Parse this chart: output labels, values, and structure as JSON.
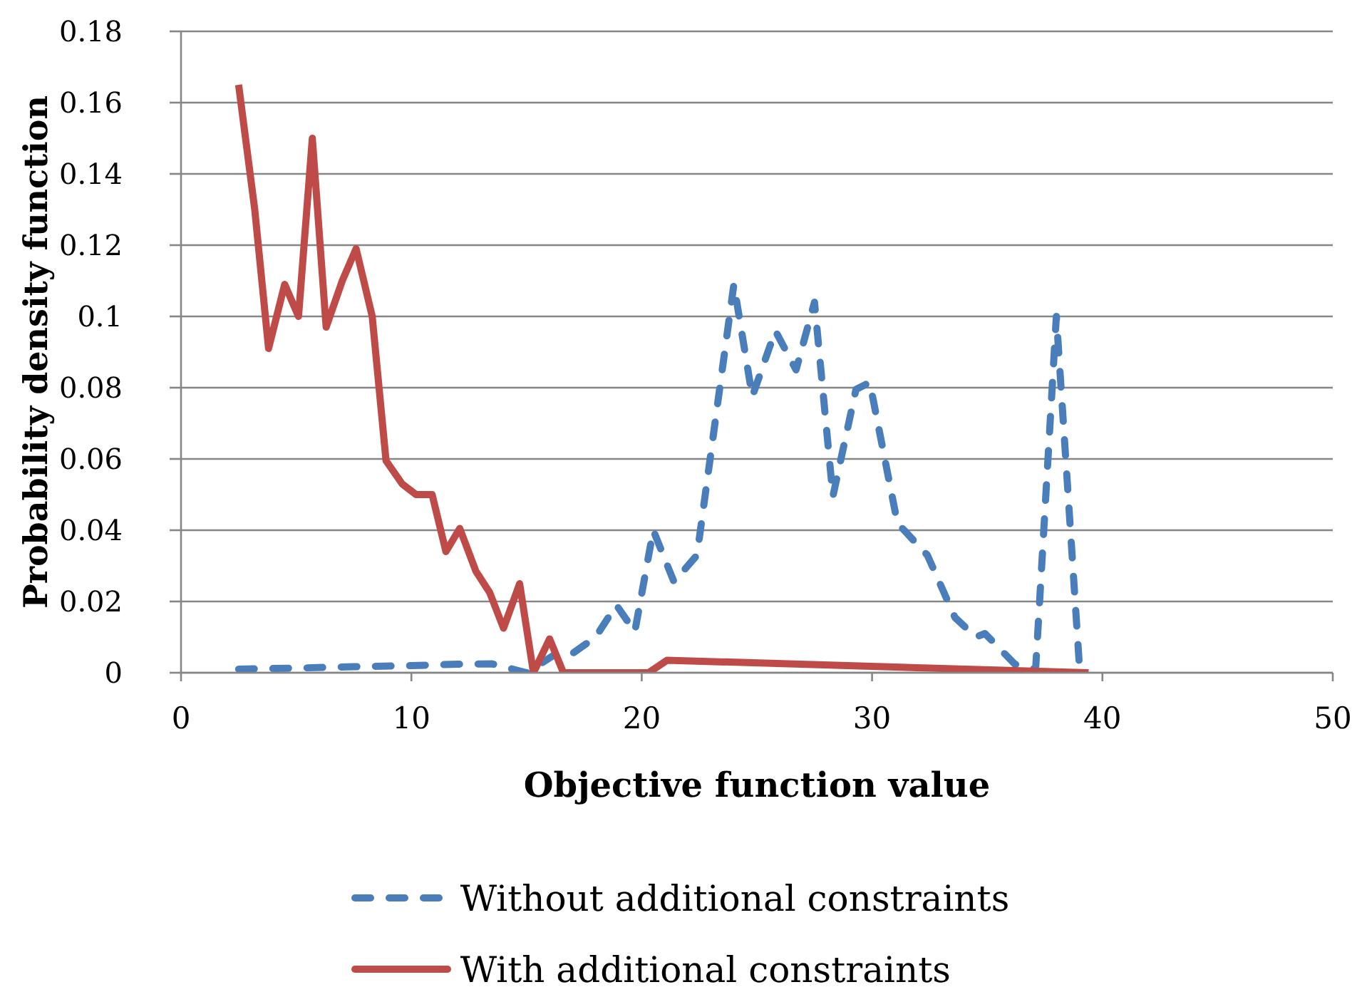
{
  "chart_data": {
    "type": "line",
    "xlabel": "Objective function value",
    "ylabel": "Probability density function",
    "xlim": [
      0,
      50
    ],
    "xticks": [
      0,
      10,
      20,
      30,
      40,
      50
    ],
    "ylim": [
      0,
      0.18
    ],
    "yticks": [
      0,
      0.02,
      0.04,
      0.06,
      0.08,
      0.1,
      0.12,
      0.14,
      0.16,
      0.18
    ],
    "grid": "y",
    "legend": "bottom",
    "series": [
      {
        "name": "Without additional constraints",
        "color": "#4a7ebb",
        "line_style": "dashed",
        "x": [
          2.5,
          5,
          7.5,
          10,
          12,
          13.5,
          15,
          16.2,
          16.9,
          18,
          18.9,
          19.7,
          20.5,
          21.4,
          22.4,
          24,
          24.8,
          25.8,
          26.7,
          27.5,
          28.3,
          29.3,
          29.9,
          31.1,
          32.4,
          33.6,
          34.5,
          34.9,
          36.2,
          37.1,
          38,
          39,
          39.4
        ],
        "values": [
          0.001,
          0.0013,
          0.0017,
          0.002,
          0.0024,
          0.0025,
          0,
          0.005,
          0.005,
          0.01,
          0.019,
          0.0115,
          0.04,
          0.0255,
          0.033,
          0.109,
          0.0775,
          0.096,
          0.085,
          0.104,
          0.0495,
          0.0795,
          0.0815,
          0.042,
          0.033,
          0.0155,
          0.01,
          0.011,
          0.0024,
          0.001,
          0.1,
          0.002,
          0.003
        ]
      },
      {
        "name": "With additional constraints",
        "color": "#be4b48",
        "line_style": "solid",
        "x": [
          2.5,
          3.2,
          3.8,
          4.5,
          5.1,
          5.7,
          6.3,
          7,
          7.6,
          8.3,
          8.9,
          9.6,
          10.2,
          10.9,
          11.5,
          12.1,
          12.8,
          13.4,
          14,
          14.7,
          15.3,
          16,
          16.6,
          20.3,
          21.1,
          39.4
        ],
        "values": [
          0.165,
          0.13,
          0.091,
          0.109,
          0.1,
          0.15,
          0.097,
          0.11,
          0.119,
          0.1,
          0.0595,
          0.053,
          0.05,
          0.05,
          0.034,
          0.0405,
          0.0285,
          0.0225,
          0.0125,
          0.025,
          0,
          0.0095,
          0,
          0,
          0.0035,
          0
        ]
      }
    ]
  }
}
